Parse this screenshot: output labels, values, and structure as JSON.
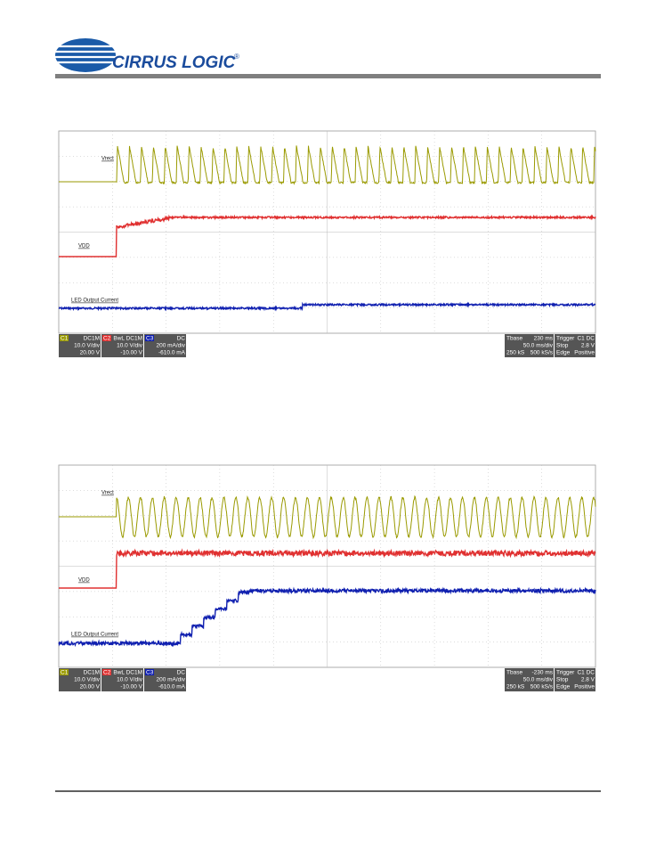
{
  "header": {
    "brand": "CIRRUS LOGIC",
    "trademark": "®"
  },
  "scopes": [
    {
      "labels": [
        "Vrect",
        "VDD",
        "LED Output Current"
      ],
      "channels": [
        {
          "id": "C1",
          "coupling": "DC1M",
          "scale": "10.0 V/div",
          "offset": "20.00 V"
        },
        {
          "id": "C2",
          "coupling": "BwL DC1M",
          "scale": "10.0 V/div",
          "offset": "-10.00 V"
        },
        {
          "id": "C3",
          "coupling": "DC",
          "scale": "200 mA/div",
          "offset": "-610.0 mA"
        }
      ],
      "timebase": {
        "title": "Tbase",
        "delay": "230 ms",
        "scale": "50.0 ms/div",
        "samples": "250 kS",
        "rate": "500 kS/s"
      },
      "trigger": {
        "title": "Trigger",
        "source": "C1 DC",
        "mode": "Stop",
        "level": "2.8 V",
        "type": "Edge",
        "slope": "Positive"
      }
    },
    {
      "labels": [
        "Vrect",
        "VDD",
        "LED Output Current"
      ],
      "channels": [
        {
          "id": "C1",
          "coupling": "DC1M",
          "scale": "10.0 V/div",
          "offset": "20.00 V"
        },
        {
          "id": "C2",
          "coupling": "BwL DC1M",
          "scale": "10.0 V/div",
          "offset": "-10.00 V"
        },
        {
          "id": "C3",
          "coupling": "DC",
          "scale": "200 mA/div",
          "offset": "-610.0 mA"
        }
      ],
      "timebase": {
        "title": "Tbase",
        "delay": "-230 ms",
        "scale": "50.0 ms/div",
        "samples": "250 kS",
        "rate": "500 kS/s"
      },
      "trigger": {
        "title": "Trigger",
        "source": "C1 DC",
        "mode": "Stop",
        "level": "2.8 V",
        "type": "Edge",
        "slope": "Positive"
      }
    }
  ]
}
